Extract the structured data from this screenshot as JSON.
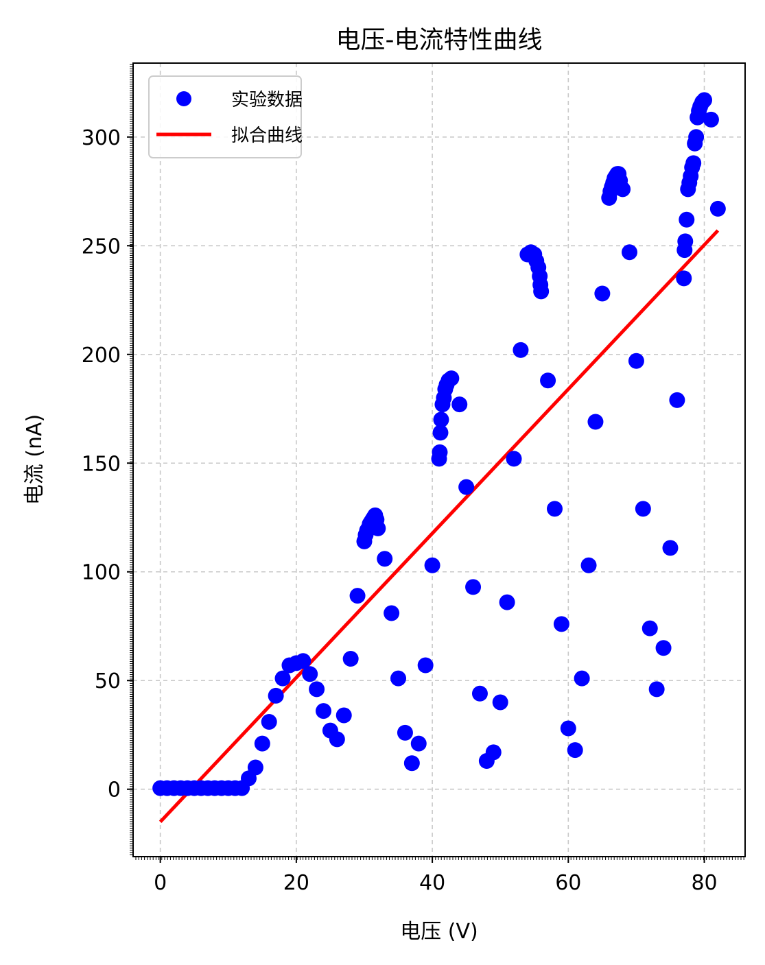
{
  "chart_data": {
    "type": "scatter",
    "title": "电压-电流特性曲线",
    "xlabel": "电压 (V)",
    "ylabel": "电流 (nA)",
    "xlim": [
      -4,
      86
    ],
    "ylim": [
      -31,
      334
    ],
    "xticks": [
      0,
      20,
      40,
      60,
      80
    ],
    "yticks": [
      0,
      50,
      100,
      150,
      200,
      250,
      300
    ],
    "grid": true,
    "legend_position": "top-left",
    "series": [
      {
        "name": "实验数据",
        "kind": "scatter",
        "color": "#0000ff",
        "points": [
          [
            0,
            0.5
          ],
          [
            1,
            0.5
          ],
          [
            2,
            0.5
          ],
          [
            3,
            0.5
          ],
          [
            4,
            0.5
          ],
          [
            5,
            0.5
          ],
          [
            6,
            0.5
          ],
          [
            7,
            0.5
          ],
          [
            8,
            0.5
          ],
          [
            9,
            0.5
          ],
          [
            10,
            0.5
          ],
          [
            11,
            0.5
          ],
          [
            12,
            0.5
          ],
          [
            13,
            5
          ],
          [
            14,
            10
          ],
          [
            15,
            21
          ],
          [
            16,
            31
          ],
          [
            17,
            43
          ],
          [
            18,
            51
          ],
          [
            19,
            57
          ],
          [
            20,
            58
          ],
          [
            21,
            59
          ],
          [
            22,
            53
          ],
          [
            23,
            46
          ],
          [
            24,
            36
          ],
          [
            25,
            27
          ],
          [
            26,
            23
          ],
          [
            27,
            34
          ],
          [
            28,
            60
          ],
          [
            29,
            89
          ],
          [
            30,
            114
          ],
          [
            30.2,
            117
          ],
          [
            30.4,
            119
          ],
          [
            30.6,
            120
          ],
          [
            30.8,
            122
          ],
          [
            31,
            123
          ],
          [
            31.2,
            124
          ],
          [
            31.4,
            125
          ],
          [
            31.6,
            126
          ],
          [
            31.8,
            124
          ],
          [
            32,
            120
          ],
          [
            33,
            106
          ],
          [
            34,
            81
          ],
          [
            35,
            51
          ],
          [
            36,
            26
          ],
          [
            37,
            12
          ],
          [
            38,
            21
          ],
          [
            39,
            57
          ],
          [
            40,
            103
          ],
          [
            41,
            152
          ],
          [
            41.1,
            155
          ],
          [
            41.2,
            164
          ],
          [
            41.3,
            170
          ],
          [
            41.5,
            177
          ],
          [
            41.7,
            180
          ],
          [
            41.9,
            184
          ],
          [
            42.1,
            186
          ],
          [
            42.4,
            188
          ],
          [
            42.8,
            189
          ],
          [
            44,
            177
          ],
          [
            45,
            139
          ],
          [
            46,
            93
          ],
          [
            47,
            44
          ],
          [
            48,
            13
          ],
          [
            49,
            17
          ],
          [
            50,
            40
          ],
          [
            51,
            86
          ],
          [
            52,
            152
          ],
          [
            53,
            202
          ],
          [
            54,
            246
          ],
          [
            54.5,
            247
          ],
          [
            55,
            246
          ],
          [
            55.3,
            243
          ],
          [
            55.6,
            240
          ],
          [
            55.8,
            236
          ],
          [
            55.9,
            232
          ],
          [
            56,
            229
          ],
          [
            57,
            188
          ],
          [
            58,
            129
          ],
          [
            59,
            76
          ],
          [
            60,
            28
          ],
          [
            61,
            18
          ],
          [
            62,
            51
          ],
          [
            63,
            103
          ],
          [
            64,
            169
          ],
          [
            65,
            228
          ],
          [
            66,
            272
          ],
          [
            66.2,
            275
          ],
          [
            66.4,
            277
          ],
          [
            66.6,
            279
          ],
          [
            66.8,
            281
          ],
          [
            67,
            282
          ],
          [
            67.2,
            283
          ],
          [
            67.4,
            283
          ],
          [
            67.6,
            280
          ],
          [
            68,
            276
          ],
          [
            69,
            247
          ],
          [
            70,
            197
          ],
          [
            71,
            129
          ],
          [
            72,
            74
          ],
          [
            73,
            46
          ],
          [
            74,
            65
          ],
          [
            75,
            111
          ],
          [
            76,
            179
          ],
          [
            77,
            235
          ],
          [
            77.1,
            248
          ],
          [
            77.2,
            252
          ],
          [
            77.4,
            262
          ],
          [
            77.6,
            276
          ],
          [
            77.8,
            279
          ],
          [
            78,
            282
          ],
          [
            78.2,
            286
          ],
          [
            78.4,
            288
          ],
          [
            78.6,
            297
          ],
          [
            78.8,
            300
          ],
          [
            79,
            309
          ],
          [
            79.2,
            312
          ],
          [
            79.4,
            314
          ],
          [
            79.7,
            316
          ],
          [
            80,
            317
          ],
          [
            81,
            308
          ],
          [
            82,
            267
          ]
        ]
      },
      {
        "name": "拟合曲线",
        "kind": "line",
        "color": "#ff0000",
        "x": [
          0,
          82
        ],
        "y": [
          -15,
          257
        ]
      }
    ]
  }
}
